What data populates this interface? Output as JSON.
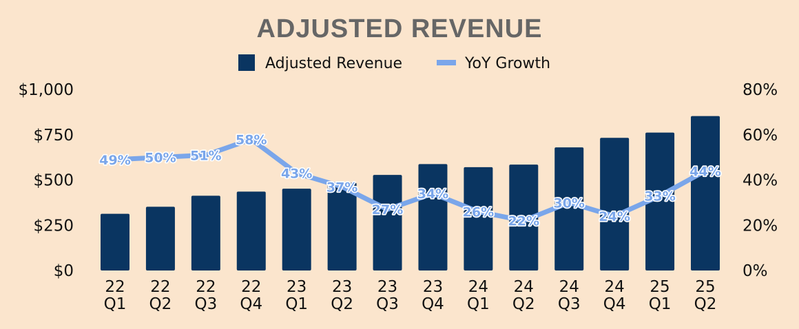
{
  "chart_data": {
    "type": "bar",
    "title": "ADJUSTED REVENUE",
    "categories": [
      [
        "22",
        "Q1"
      ],
      [
        "22",
        "Q2"
      ],
      [
        "22",
        "Q3"
      ],
      [
        "22",
        "Q4"
      ],
      [
        "23",
        "Q1"
      ],
      [
        "23",
        "Q2"
      ],
      [
        "23",
        "Q3"
      ],
      [
        "23",
        "Q4"
      ],
      [
        "24",
        "Q1"
      ],
      [
        "24",
        "Q2"
      ],
      [
        "24",
        "Q3"
      ],
      [
        "24",
        "Q4"
      ],
      [
        "25",
        "Q1"
      ],
      [
        "25",
        "Q2"
      ]
    ],
    "series": [
      {
        "name": "Adjusted Revenue",
        "type": "bar",
        "axis": "left",
        "values": [
          313,
          352,
          413,
          436,
          452,
          485,
          528,
          588,
          571,
          585,
          680,
          733,
          762,
          853
        ]
      },
      {
        "name": "YoY Growth",
        "type": "line",
        "axis": "right",
        "values": [
          49,
          50,
          51,
          58,
          43,
          37,
          27,
          34,
          26,
          22,
          30,
          24,
          33,
          44
        ],
        "labels": [
          "49%",
          "50%",
          "51%",
          "58%",
          "43%",
          "37%",
          "27%",
          "34%",
          "26%",
          "22%",
          "30%",
          "24%",
          "33%",
          "44%"
        ]
      }
    ],
    "left_axis": {
      "ylim": [
        0,
        1000
      ],
      "ticks": [
        0,
        250,
        500,
        750,
        1000
      ],
      "tick_labels": [
        "$0",
        "$250",
        "$500",
        "$750",
        "$1,000"
      ]
    },
    "right_axis": {
      "ylim": [
        0,
        80
      ],
      "ticks": [
        0,
        20,
        40,
        60,
        80
      ],
      "tick_labels": [
        "0%",
        "20%",
        "40%",
        "60%",
        "80%"
      ]
    },
    "legend": {
      "position": "top-center",
      "entries": [
        "Adjusted Revenue",
        "YoY Growth"
      ]
    },
    "grid": false,
    "colors": {
      "background": "#fbe5cd",
      "bar": "#0a3561",
      "line": "#7aa6ea",
      "title": "#666666"
    }
  }
}
